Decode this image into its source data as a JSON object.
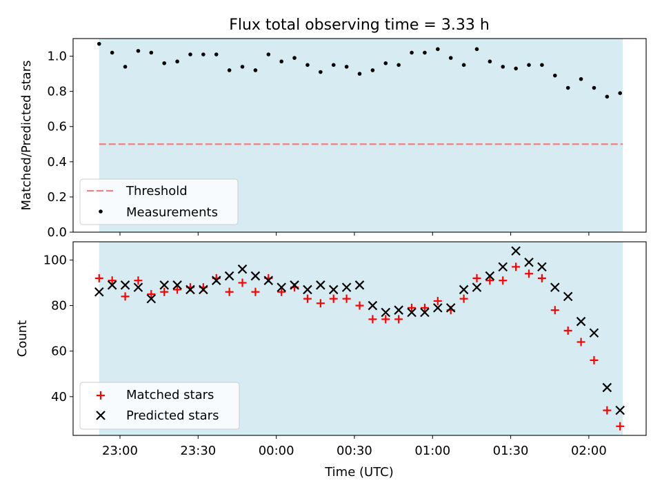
{
  "figure": {
    "title": "Flux total observing time = 3.33 h",
    "xlabel": "Time (UTC)"
  },
  "colors": {
    "shade": "#add8e6",
    "threshold": "#f08080",
    "measurements": "#000000",
    "matched": "#ff0000",
    "predicted": "#000000"
  },
  "chart_data": [
    {
      "type": "scatter",
      "panel": "top",
      "ylabel": "Matched/Predicted stars",
      "xlim": [
        "22:42",
        "02:22"
      ],
      "ylim": [
        0.0,
        1.1
      ],
      "yticks": [
        0.0,
        0.2,
        0.4,
        0.6,
        0.8,
        1.0
      ],
      "yticklabels": [
        "0.0",
        "0.2",
        "0.4",
        "0.6",
        "0.8",
        "1.0"
      ],
      "shaded_range": [
        "22:52",
        "02:13"
      ],
      "legend_position": "lower left",
      "threshold": {
        "name": "Threshold",
        "value": 0.5,
        "style": "dashed"
      },
      "series": [
        {
          "name": "Measurements",
          "marker": "dot",
          "x": [
            "22:52",
            "22:57",
            "23:02",
            "23:07",
            "23:12",
            "23:17",
            "23:22",
            "23:27",
            "23:32",
            "23:37",
            "23:42",
            "23:47",
            "23:52",
            "23:57",
            "00:02",
            "00:07",
            "00:12",
            "00:17",
            "00:22",
            "00:27",
            "00:32",
            "00:37",
            "00:42",
            "00:47",
            "00:52",
            "00:57",
            "01:02",
            "01:07",
            "01:12",
            "01:17",
            "01:22",
            "01:27",
            "01:32",
            "01:37",
            "01:42",
            "01:47",
            "01:52",
            "01:57",
            "02:02",
            "02:07",
            "02:12"
          ],
          "y": [
            1.07,
            1.02,
            0.94,
            1.03,
            1.02,
            0.96,
            0.97,
            1.01,
            1.01,
            1.01,
            0.92,
            0.94,
            0.92,
            1.01,
            0.97,
            0.99,
            0.95,
            0.91,
            0.95,
            0.94,
            0.9,
            0.92,
            0.96,
            0.95,
            1.02,
            1.02,
            1.04,
            0.99,
            0.95,
            1.04,
            0.97,
            0.94,
            0.93,
            0.95,
            0.95,
            0.89,
            0.82,
            0.87,
            0.82,
            0.77,
            0.79
          ]
        }
      ]
    },
    {
      "type": "scatter",
      "panel": "bottom",
      "ylabel": "Count",
      "xlim": [
        "22:42",
        "02:22"
      ],
      "ylim": [
        23,
        108
      ],
      "yticks": [
        40,
        60,
        80,
        100
      ],
      "yticklabels": [
        "40",
        "60",
        "80",
        "100"
      ],
      "xticks": [
        "23:00",
        "23:30",
        "00:00",
        "00:30",
        "01:00",
        "01:30",
        "02:00"
      ],
      "shaded_range": [
        "22:52",
        "02:13"
      ],
      "legend_position": "lower left",
      "x": [
        "22:52",
        "22:57",
        "23:02",
        "23:07",
        "23:12",
        "23:17",
        "23:22",
        "23:27",
        "23:32",
        "23:37",
        "23:42",
        "23:47",
        "23:52",
        "23:57",
        "00:02",
        "00:07",
        "00:12",
        "00:17",
        "00:22",
        "00:27",
        "00:32",
        "00:37",
        "00:42",
        "00:47",
        "00:52",
        "00:57",
        "01:02",
        "01:07",
        "01:12",
        "01:17",
        "01:22",
        "01:27",
        "01:32",
        "01:37",
        "01:42",
        "01:47",
        "01:52",
        "01:57",
        "02:02",
        "02:07",
        "02:12"
      ],
      "series": [
        {
          "name": "Matched stars",
          "marker": "plus",
          "values": [
            92,
            91,
            84,
            91,
            85,
            86,
            87,
            88,
            88,
            92,
            86,
            90,
            86,
            92,
            86,
            88,
            83,
            81,
            83,
            83,
            80,
            74,
            74,
            74,
            79,
            79,
            82,
            78,
            83,
            92,
            91,
            91,
            97,
            94,
            92,
            78,
            69,
            64,
            56,
            34,
            27
          ]
        },
        {
          "name": "Predicted stars",
          "marker": "x",
          "values": [
            86,
            89,
            89,
            88,
            83,
            89,
            89,
            87,
            87,
            91,
            93,
            96,
            93,
            91,
            88,
            89,
            87,
            89,
            87,
            88,
            89,
            80,
            77,
            78,
            77,
            77,
            79,
            79,
            87,
            88,
            93,
            97,
            104,
            99,
            97,
            88,
            84,
            73,
            68,
            44,
            34
          ]
        }
      ]
    }
  ]
}
